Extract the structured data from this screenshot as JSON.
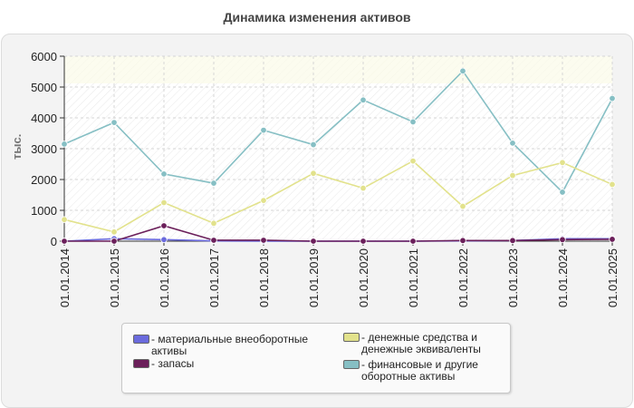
{
  "chart_data": {
    "type": "line",
    "title": "Динамика изменения активов",
    "ylabel": "тыс.",
    "xlabel": "",
    "categories": [
      "01.01.2014",
      "01.01.2015",
      "01.01.2016",
      "01.01.2017",
      "01.01.2018",
      "01.01.2019",
      "01.01.2020",
      "01.01.2021",
      "01.01.2022",
      "01.01.2023",
      "01.01.2024",
      "01.01.2025"
    ],
    "ylim": [
      0,
      6000
    ],
    "yticks": [
      0,
      1000,
      2000,
      3000,
      4000,
      5000,
      6000
    ],
    "grid": true,
    "legend_position": "bottom",
    "series": [
      {
        "name": "материальные внеоборотные активы",
        "color": "#6b6bdd",
        "values": [
          0,
          80,
          50,
          10,
          0,
          0,
          0,
          0,
          10,
          20,
          80,
          80
        ]
      },
      {
        "name": "запасы",
        "color": "#6b1f5a",
        "values": [
          0,
          0,
          500,
          30,
          30,
          0,
          0,
          0,
          20,
          20,
          50,
          60
        ]
      },
      {
        "name": "денежные средства и денежные эквиваленты",
        "color": "#e2e28c",
        "values": [
          700,
          300,
          1250,
          580,
          1320,
          2200,
          1720,
          2600,
          1130,
          2130,
          2550,
          1840
        ]
      },
      {
        "name": "финансовые и другие оборотные активы",
        "color": "#86bfc4",
        "values": [
          3150,
          3850,
          2180,
          1880,
          3600,
          3130,
          4580,
          3870,
          5520,
          3180,
          1590,
          4630
        ]
      }
    ]
  }
}
